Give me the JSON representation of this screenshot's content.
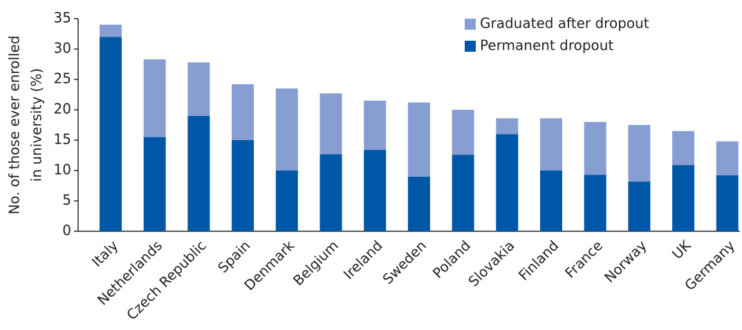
{
  "chart_data": {
    "type": "stacked_bar",
    "y_label": [
      "No. of those ever enrolled",
      "in university (%)"
    ],
    "categories": [
      "Italy",
      "Netherlands",
      "Czech Republic",
      "Spain",
      "Denmark",
      "Belgium",
      "Ireland",
      "Sweden",
      "Poland",
      "Slovakia",
      "Finland",
      "France",
      "Norway",
      "UK",
      "Germany"
    ],
    "series": [
      {
        "name": "Permanent dropout",
        "color": "#0057a8",
        "values": [
          32,
          15.5,
          19,
          15,
          10,
          12.7,
          13.4,
          9,
          12.6,
          16,
          10,
          9.3,
          8.2,
          10.9,
          9.2
        ]
      },
      {
        "name": "Graduated after dropout",
        "color": "#869ed1",
        "values": [
          2,
          12.8,
          8.8,
          9.2,
          13.5,
          10,
          8.1,
          12.2,
          7.4,
          2.6,
          8.6,
          8.7,
          9.3,
          5.6,
          5.6
        ]
      }
    ],
    "ylim": [
      0,
      35
    ],
    "yticks": [
      0,
      5,
      10,
      15,
      20,
      25,
      30,
      35
    ],
    "legend": "upper right"
  }
}
